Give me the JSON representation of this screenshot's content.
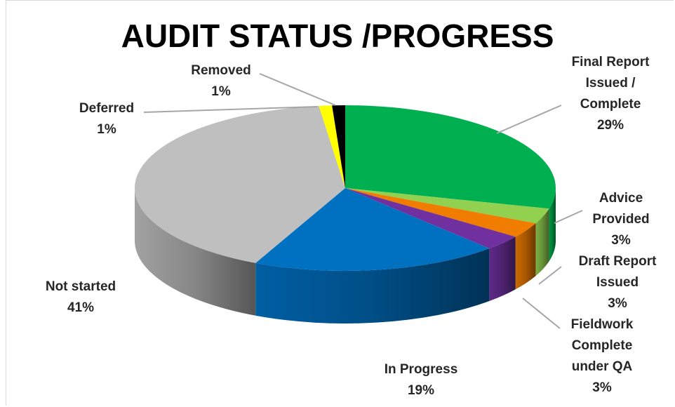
{
  "chart_data": {
    "type": "pie",
    "title": "AUDIT STATUS /PROGRESS",
    "categories": [
      "Final Report Issued / Complete",
      "Advice Provided",
      "Draft Report Issued",
      "Fieldwork Complete under QA",
      "In Progress",
      "Not started",
      "Deferred",
      "Removed"
    ],
    "values": [
      29,
      3,
      3,
      3,
      19,
      41,
      1,
      1
    ],
    "value_labels": [
      "29%",
      "3%",
      "3%",
      "3%",
      "19%",
      "41%",
      "1%",
      "1%"
    ],
    "colors": [
      "#00b050",
      "#92d050",
      "#f07d00",
      "#7030a0",
      "#0070c0",
      "#bfbfbf",
      "#ffff00",
      "#000000"
    ]
  }
}
